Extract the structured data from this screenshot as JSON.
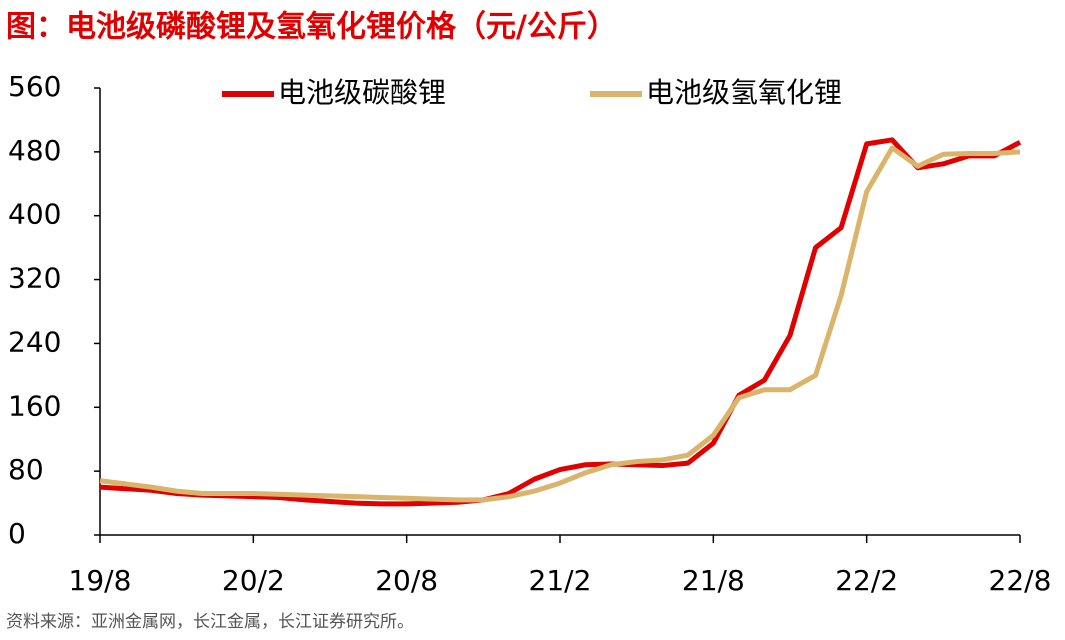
{
  "chart_data": {
    "type": "line",
    "title": "图：电池级磷酸锂及氢氧化锂价格（元/公斤）",
    "source": "资料来源：亚洲金属网，长江金属，长江证券研究所。",
    "categories": [
      "19/8",
      null,
      null,
      null,
      null,
      null,
      "20/2",
      null,
      null,
      null,
      null,
      null,
      "20/8",
      null,
      null,
      null,
      null,
      null,
      "21/2",
      null,
      null,
      null,
      null,
      null,
      "21/8",
      null,
      null,
      null,
      null,
      null,
      "22/2",
      null,
      null,
      null,
      null,
      null,
      "22/8"
    ],
    "series": [
      {
        "name": "电池级碳酸锂",
        "color": "#e00000",
        "values": [
          60,
          58,
          56,
          52,
          50,
          49,
          48,
          47,
          44,
          42,
          40,
          39,
          39,
          40,
          41,
          44,
          52,
          70,
          82,
          88,
          89,
          88,
          87,
          90,
          115,
          175,
          194,
          250,
          360,
          385,
          490,
          495,
          460,
          465,
          475,
          475,
          492
        ]
      },
      {
        "name": "电池级氢氧化锂",
        "color": "#d9b46a",
        "values": [
          68,
          64,
          60,
          55,
          52,
          52,
          52,
          51,
          50,
          49,
          48,
          47,
          46,
          45,
          44,
          44,
          48,
          55,
          65,
          78,
          88,
          92,
          94,
          100,
          125,
          172,
          182,
          182,
          200,
          300,
          430,
          485,
          462,
          477,
          478,
          478,
          480
        ]
      }
    ],
    "ylim": [
      0,
      560
    ],
    "yticks": [
      0,
      80,
      160,
      240,
      320,
      400,
      480,
      560
    ],
    "grid": false
  }
}
